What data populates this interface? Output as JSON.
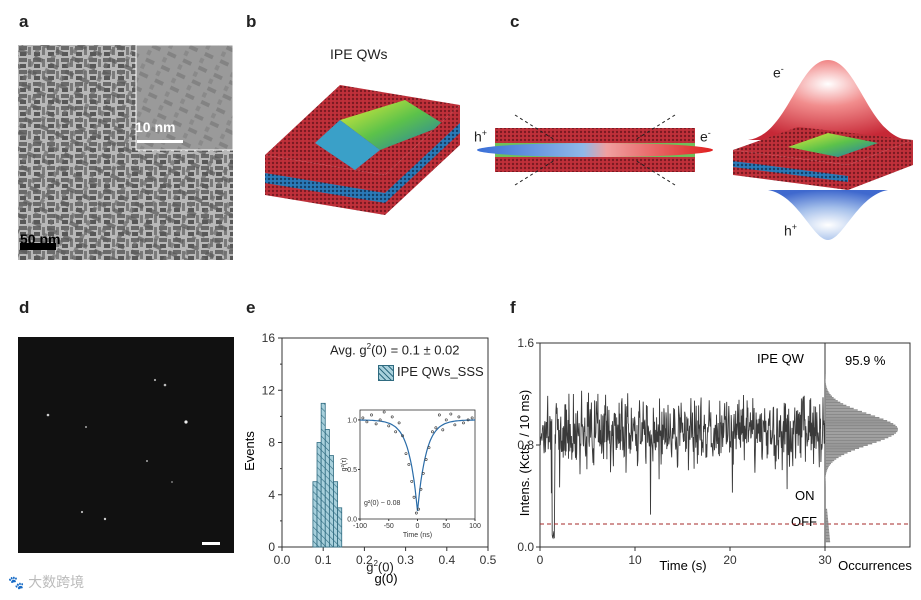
{
  "panel_labels": {
    "a": "a",
    "b": "b",
    "c": "c",
    "d": "d",
    "e": "e",
    "f": "f"
  },
  "panel_a": {
    "scale_small": "10 nm",
    "scale_large": "50 nm"
  },
  "panel_b": {
    "title": "IPE QWs"
  },
  "panel_c": {
    "h_plus": "h",
    "e_minus": "e",
    "h_sup": "+",
    "e_sup": "-"
  },
  "chart_data": [
    {
      "type": "bar",
      "panel": "e",
      "xlabel": "g(0)",
      "xlabel_sup": "2",
      "ylabel": "Events",
      "xlim": [
        0,
        0.5
      ],
      "ylim": [
        0,
        16
      ],
      "xticks": [
        0.0,
        0.1,
        0.2,
        0.3,
        0.4,
        0.5
      ],
      "xtick_labels": [
        "0.0",
        "0.1",
        "0.2",
        "0.3",
        "0.4",
        "0.5"
      ],
      "yticks": [
        0,
        4,
        8,
        12,
        16
      ],
      "yticks_minor": [
        2,
        6,
        10,
        14
      ],
      "bin_width": 0.01,
      "bins": [
        0.08,
        0.09,
        0.1,
        0.11,
        0.12,
        0.13,
        0.14
      ],
      "values": [
        5,
        8,
        11,
        9,
        7,
        5,
        3
      ],
      "annotation": "Avg. g(0) = 0.1 ± 0.02",
      "annotation_parts": {
        "pre": "Avg. g",
        "sup": "2",
        "post": "(0) = 0.1 ± 0.02"
      },
      "legend": "IPE QWs_SSS",
      "inset": {
        "xlabel": "Time (ns)",
        "ylabel": "g²(τ)",
        "xlim": [
          -100,
          100
        ],
        "ylim": [
          0,
          1.1
        ],
        "xticks": [
          -100,
          -50,
          0,
          50,
          100
        ],
        "xtick_labels": [
          "-100",
          "-50",
          "0",
          "50",
          "100"
        ],
        "yticks": [
          0.0,
          0.5,
          1.0
        ],
        "ytick_labels": [
          "0.0",
          "0.5",
          "1.0"
        ],
        "annotation": "g²(0) ~ 0.08",
        "fit": {
          "floor": 0.08,
          "tau": 15
        },
        "points_x": [
          -95,
          -88,
          -80,
          -72,
          -65,
          -58,
          -50,
          -44,
          -38,
          -32,
          -26,
          -20,
          -15,
          -10,
          -6,
          -2,
          2,
          6,
          10,
          15,
          20,
          26,
          32,
          38,
          44,
          50,
          58,
          65,
          72,
          80,
          88,
          95
        ],
        "points_y": [
          1.02,
          0.98,
          1.05,
          0.96,
          1.0,
          1.08,
          0.94,
          1.03,
          0.88,
          0.97,
          0.84,
          0.66,
          0.55,
          0.38,
          0.22,
          0.06,
          0.1,
          0.3,
          0.46,
          0.6,
          0.72,
          0.88,
          0.92,
          1.05,
          0.9,
          1.0,
          1.06,
          0.95,
          1.03,
          0.97,
          1.0,
          1.02
        ]
      }
    },
    {
      "type": "line",
      "panel": "f",
      "xlabel": "Time (s)",
      "ylabel": "Intens. (Kcts. / 10 ms)",
      "xlim": [
        0,
        30
      ],
      "ylim": [
        0,
        1.6
      ],
      "xticks": [
        0,
        10,
        20,
        30
      ],
      "xtick_labels": [
        "0",
        "10",
        "20",
        "30"
      ],
      "yticks": [
        0.0,
        0.8,
        1.6
      ],
      "ytick_labels": [
        "0.0",
        "0.8",
        "1.6"
      ],
      "title_inside": "IPE QW",
      "threshold": 0.18,
      "threshold_color": "#a52a2a",
      "on_label": "ON",
      "off_label": "OFF",
      "mean": 0.92,
      "sd": 0.16,
      "dip_time": 1.4,
      "histogram": {
        "xlabel": "Occurrences",
        "annotation": "95.9 %",
        "peak": 0.92,
        "sd": 0.12
      }
    }
  ],
  "colors": {
    "trace": "#3a3a3a",
    "hist_fill": "#a8d0dc",
    "hist_stroke": "#2f6b80",
    "fit": "#2a6ca8"
  },
  "watermark": "大数跨境"
}
